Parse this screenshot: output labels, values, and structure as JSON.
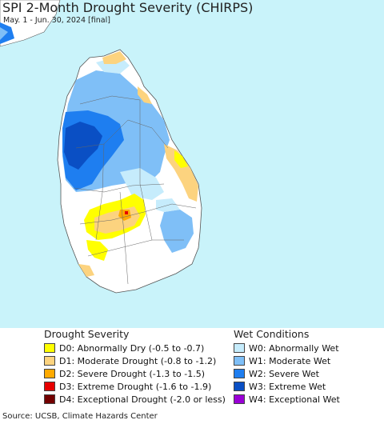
{
  "header": {
    "title": "SPI 2-Month Drought Severity (CHIRPS)",
    "subtitle": "May. 1 - Jun. 30, 2024 [final]"
  },
  "legend": {
    "drought_heading": "Drought Severity",
    "wet_heading": "Wet Conditions",
    "drought_items": [
      {
        "label": "D0: Abnormally Dry (-0.5 to -0.7)",
        "color": "#ffff00"
      },
      {
        "label": "D1: Moderate Drought (-0.8 to -1.2)",
        "color": "#fcd37f"
      },
      {
        "label": "D2: Severe Drought (-1.3 to -1.5)",
        "color": "#ffaa00"
      },
      {
        "label": "D3: Extreme Drought (-1.6 to -1.9)",
        "color": "#e60000"
      },
      {
        "label": "D4: Exceptional Drought (-2.0 or less)",
        "color": "#730000"
      }
    ],
    "wet_items": [
      {
        "label": "W0: Abnormally Wet",
        "color": "#c6ecfc"
      },
      {
        "label": "W1: Moderate Wet",
        "color": "#7fbff7"
      },
      {
        "label": "W2: Severe Wet",
        "color": "#1e7ef0"
      },
      {
        "label": "W3: Extreme Wet",
        "color": "#0a4fc4"
      },
      {
        "label": "W4: Exceptional Wet",
        "color": "#9a00d6"
      }
    ]
  },
  "footer": {
    "source": "Source: UCSB, Climate Hazards Center"
  },
  "colors": {
    "ocean": "#c9f3fa",
    "land_normal": "#ffffff",
    "mainland": "#ffffff"
  }
}
